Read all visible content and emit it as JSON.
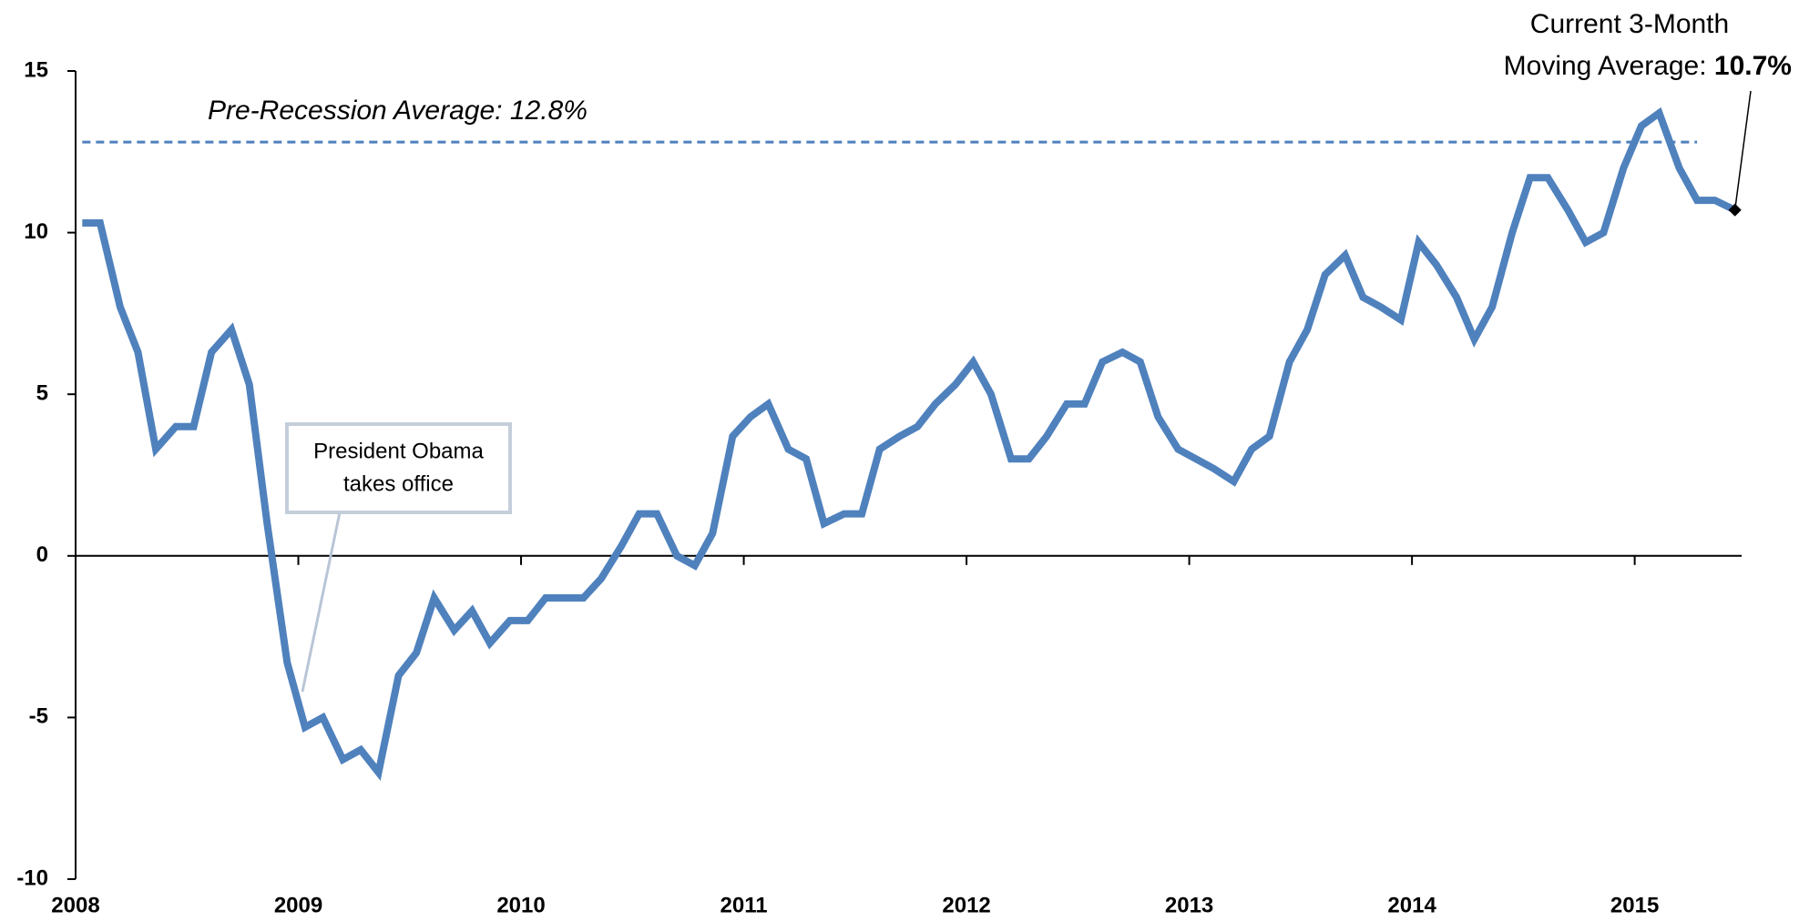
{
  "chart_data": {
    "type": "line",
    "x": [
      2008.03,
      2008.11,
      2008.2,
      2008.28,
      2008.36,
      2008.45,
      2008.53,
      2008.61,
      2008.7,
      2008.78,
      2008.86,
      2008.95,
      2009.03,
      2009.11,
      2009.2,
      2009.28,
      2009.36,
      2009.45,
      2009.53,
      2009.61,
      2009.7,
      2009.78,
      2009.86,
      2009.95,
      2010.03,
      2010.11,
      2010.2,
      2010.28,
      2010.36,
      2010.45,
      2010.53,
      2010.61,
      2010.7,
      2010.78,
      2010.86,
      2010.95,
      2011.03,
      2011.11,
      2011.2,
      2011.28,
      2011.36,
      2011.45,
      2011.53,
      2011.61,
      2011.7,
      2011.78,
      2011.86,
      2011.95,
      2012.03,
      2012.11,
      2012.2,
      2012.28,
      2012.36,
      2012.45,
      2012.53,
      2012.61,
      2012.7,
      2012.78,
      2012.86,
      2012.95,
      2013.03,
      2013.11,
      2013.2,
      2013.28,
      2013.36,
      2013.45,
      2013.53,
      2013.61,
      2013.7,
      2013.78,
      2013.86,
      2013.95,
      2014.03,
      2014.11,
      2014.2,
      2014.28,
      2014.36,
      2014.45,
      2014.53,
      2014.61,
      2014.7,
      2014.78,
      2014.86,
      2014.95,
      2015.03,
      2015.11,
      2015.2,
      2015.28,
      2015.36,
      2015.45
    ],
    "series": [
      {
        "color": "#4f81bd",
        "values": [
          10.3,
          10.3,
          7.7,
          6.3,
          3.3,
          4.0,
          4.0,
          6.3,
          7.0,
          5.3,
          1.0,
          -3.3,
          -5.3,
          -5.0,
          -6.3,
          -6.0,
          -6.7,
          -3.7,
          -3.0,
          -1.3,
          -2.3,
          -1.7,
          -2.7,
          -2.0,
          -2.0,
          -1.3,
          -1.3,
          -1.3,
          -0.7,
          0.3,
          1.3,
          1.3,
          0.0,
          -0.3,
          0.7,
          3.7,
          4.3,
          4.7,
          3.3,
          3.0,
          1.0,
          1.3,
          1.3,
          3.3,
          3.7,
          4.0,
          4.7,
          5.3,
          6.0,
          5.0,
          3.0,
          3.0,
          3.7,
          4.7,
          4.7,
          6.0,
          6.3,
          6.0,
          4.3,
          3.3,
          3.0,
          2.7,
          2.3,
          3.3,
          3.7,
          6.0,
          7.0,
          8.7,
          9.3,
          8.0,
          7.7,
          7.3,
          9.7,
          9.0,
          8.0,
          6.7,
          7.7,
          10.0,
          11.7,
          11.7,
          10.7,
          9.7,
          10.0,
          12.0,
          13.3,
          13.7,
          12.0,
          11.0,
          11.0,
          10.7
        ]
      }
    ],
    "xlim": [
      2008,
      2015.48
    ],
    "xticks": [
      2008,
      2009,
      2010,
      2011,
      2012,
      2013,
      2014,
      2015
    ],
    "ylim": [
      -10,
      15
    ],
    "yticks": [
      -10,
      -5,
      0,
      5,
      10,
      15
    ],
    "reference": {
      "value": 12.8,
      "label": "Pre-Recession Average: 12.8%",
      "color": "#4f81bd"
    },
    "current_annotation": {
      "lines": [
        "Current 3-Month",
        "Moving Average:"
      ],
      "value_label": "10.7%"
    },
    "callout": {
      "lines": [
        "President Obama",
        "takes office"
      ]
    }
  }
}
